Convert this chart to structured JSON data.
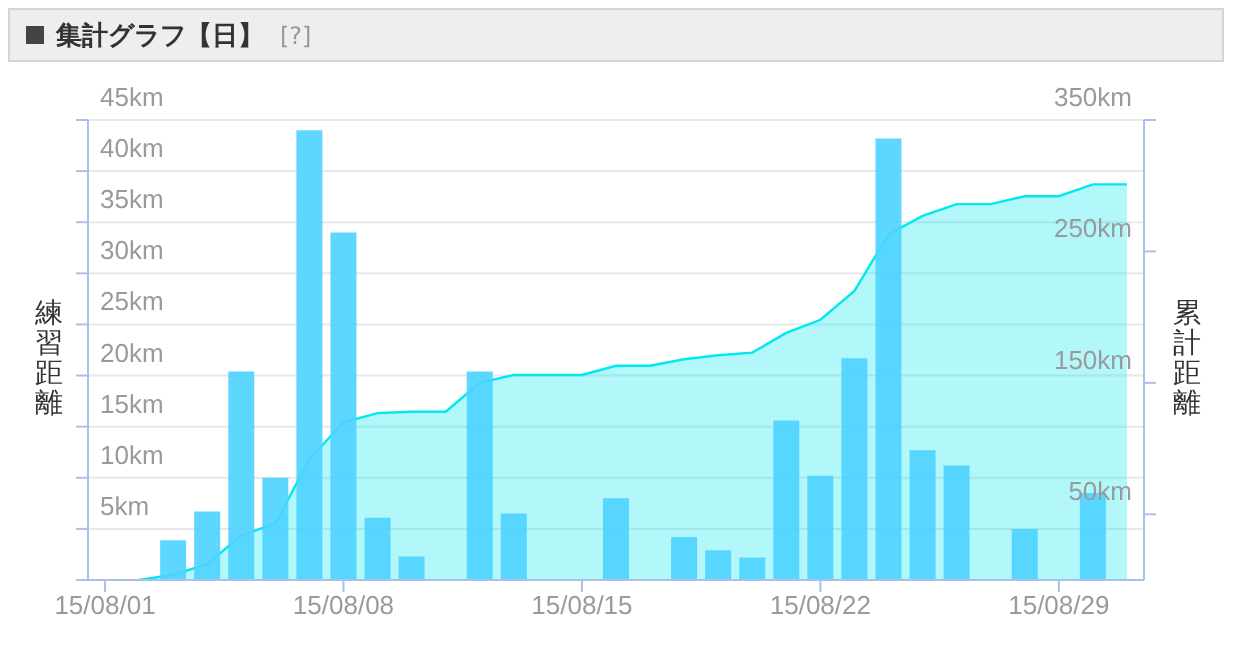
{
  "chart_data": {
    "type": "bar",
    "title": "集計グラフ【日】",
    "annotations": [
      "[?]"
    ],
    "ylabel": "練習距離",
    "y2label": "累計距離",
    "xlim": [
      "--07-31T12:00",
      "--08-31T12:00"
    ],
    "xticks": [
      {
        "value": "--08-01",
        "label": "15/08/01"
      },
      {
        "value": "--08-08",
        "label": "15/08/08"
      },
      {
        "value": "--08-15",
        "label": "15/08/15"
      },
      {
        "value": "--08-22",
        "label": "15/08/22"
      },
      {
        "value": "--08-29",
        "label": "15/08/29"
      }
    ],
    "ylim": [
      0,
      45
    ],
    "yticks": [
      {
        "value": 5,
        "label": "5km"
      },
      {
        "value": 10,
        "label": "10km"
      },
      {
        "value": 15,
        "label": "15km"
      },
      {
        "value": 20,
        "label": "20km"
      },
      {
        "value": 25,
        "label": "25km"
      },
      {
        "value": 30,
        "label": "30km"
      },
      {
        "value": 35,
        "label": "35km"
      },
      {
        "value": 40,
        "label": "40km"
      },
      {
        "value": 45,
        "label": "45km"
      }
    ],
    "y2lim": [
      0,
      350
    ],
    "y2ticks": [
      {
        "value": 50,
        "label": "50km"
      },
      {
        "value": 150,
        "label": "150km"
      },
      {
        "value": 250,
        "label": "250km"
      },
      {
        "value": 350,
        "label": "350km"
      }
    ],
    "grid": "y",
    "series": [
      {
        "type": "area",
        "axis": "y2",
        "color": "#00e8f0",
        "x": [
          "--08-02",
          "--08-03",
          "--08-04",
          "--08-05",
          "--08-06",
          "--08-07",
          "--08-08",
          "--08-09",
          "--08-10",
          "--08-11",
          "--08-12",
          "--08-13",
          "--08-14",
          "--08-15",
          "--08-16",
          "--08-17",
          "--08-18",
          "--08-19",
          "--08-20",
          "--08-21",
          "--08-22",
          "--08-23",
          "--08-24",
          "--08-25",
          "--08-26",
          "--08-27",
          "--08-28",
          "--08-29",
          "--08-30",
          "--08-31"
        ],
        "values": [
          0,
          4,
          12,
          34,
          43,
          92,
          120,
          127,
          128,
          128,
          150,
          156,
          156,
          156,
          163,
          163,
          168,
          171,
          173,
          188,
          198,
          220,
          263,
          277,
          286,
          286,
          292,
          292,
          301,
          301
        ]
      },
      {
        "color": "#4dd3ff",
        "x": [
          "--08-03",
          "--08-04",
          "--08-05",
          "--08-06",
          "--08-07",
          "--08-08",
          "--08-09",
          "--08-10",
          "--08-12",
          "--08-13",
          "--08-16",
          "--08-18",
          "--08-19",
          "--08-20",
          "--08-21",
          "--08-22",
          "--08-23",
          "--08-24",
          "--08-25",
          "--08-26",
          "--08-28",
          "--08-30"
        ],
        "values": [
          3.9,
          6.7,
          20.4,
          10.0,
          44.0,
          34.0,
          6.1,
          2.3,
          20.4,
          6.5,
          8.0,
          4.2,
          2.9,
          2.2,
          15.6,
          10.2,
          21.7,
          43.2,
          12.7,
          11.2,
          5.0,
          8.5
        ]
      }
    ]
  }
}
